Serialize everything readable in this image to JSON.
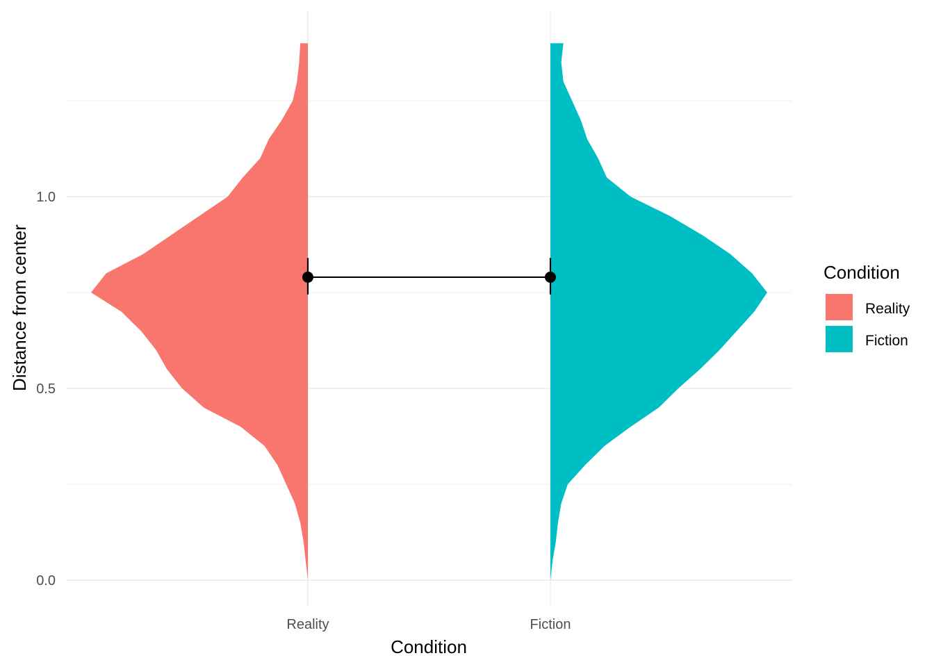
{
  "chart_data": {
    "type": "violin",
    "xlabel": "Condition",
    "ylabel": "Distance from center",
    "categories": [
      "Reality",
      "Fiction"
    ],
    "ylim": [
      -0.05,
      1.42
    ],
    "yticks": [
      0.0,
      0.5,
      1.0
    ],
    "grid": true,
    "legend": {
      "title": "Condition",
      "placement": "right",
      "entries": [
        {
          "label": "Reality",
          "color": "#F8766D"
        },
        {
          "label": "Fiction",
          "color": "#00BFC4"
        }
      ]
    },
    "series": [
      {
        "name": "Reality",
        "color": "#F8766D",
        "side": "left",
        "mean": 0.79,
        "ci": [
          0.745,
          0.84
        ],
        "density": [
          [
            0.0,
            0.0
          ],
          [
            0.05,
            0.01
          ],
          [
            0.1,
            0.02
          ],
          [
            0.15,
            0.035
          ],
          [
            0.2,
            0.06
          ],
          [
            0.25,
            0.1
          ],
          [
            0.3,
            0.14
          ],
          [
            0.35,
            0.2
          ],
          [
            0.4,
            0.31
          ],
          [
            0.45,
            0.48
          ],
          [
            0.5,
            0.58
          ],
          [
            0.55,
            0.65
          ],
          [
            0.6,
            0.7
          ],
          [
            0.65,
            0.77
          ],
          [
            0.7,
            0.86
          ],
          [
            0.75,
            1.0
          ],
          [
            0.8,
            0.93
          ],
          [
            0.85,
            0.76
          ],
          [
            0.9,
            0.63
          ],
          [
            0.95,
            0.5
          ],
          [
            1.0,
            0.37
          ],
          [
            1.05,
            0.3
          ],
          [
            1.1,
            0.22
          ],
          [
            1.15,
            0.18
          ],
          [
            1.2,
            0.12
          ],
          [
            1.25,
            0.07
          ],
          [
            1.3,
            0.05
          ],
          [
            1.35,
            0.04
          ],
          [
            1.4,
            0.035
          ]
        ]
      },
      {
        "name": "Fiction",
        "color": "#00BFC4",
        "side": "right",
        "mean": 0.79,
        "ci": [
          0.745,
          0.84
        ],
        "density": [
          [
            0.0,
            0.0
          ],
          [
            0.05,
            0.01
          ],
          [
            0.1,
            0.025
          ],
          [
            0.15,
            0.035
          ],
          [
            0.2,
            0.05
          ],
          [
            0.25,
            0.08
          ],
          [
            0.3,
            0.16
          ],
          [
            0.35,
            0.25
          ],
          [
            0.4,
            0.37
          ],
          [
            0.45,
            0.5
          ],
          [
            0.5,
            0.59
          ],
          [
            0.55,
            0.69
          ],
          [
            0.6,
            0.78
          ],
          [
            0.65,
            0.86
          ],
          [
            0.7,
            0.94
          ],
          [
            0.75,
            1.0
          ],
          [
            0.8,
            0.93
          ],
          [
            0.85,
            0.83
          ],
          [
            0.9,
            0.7
          ],
          [
            0.95,
            0.55
          ],
          [
            1.0,
            0.37
          ],
          [
            1.05,
            0.26
          ],
          [
            1.1,
            0.22
          ],
          [
            1.15,
            0.17
          ],
          [
            1.2,
            0.14
          ],
          [
            1.25,
            0.1
          ],
          [
            1.3,
            0.06
          ],
          [
            1.35,
            0.05
          ],
          [
            1.4,
            0.06
          ]
        ]
      }
    ]
  }
}
